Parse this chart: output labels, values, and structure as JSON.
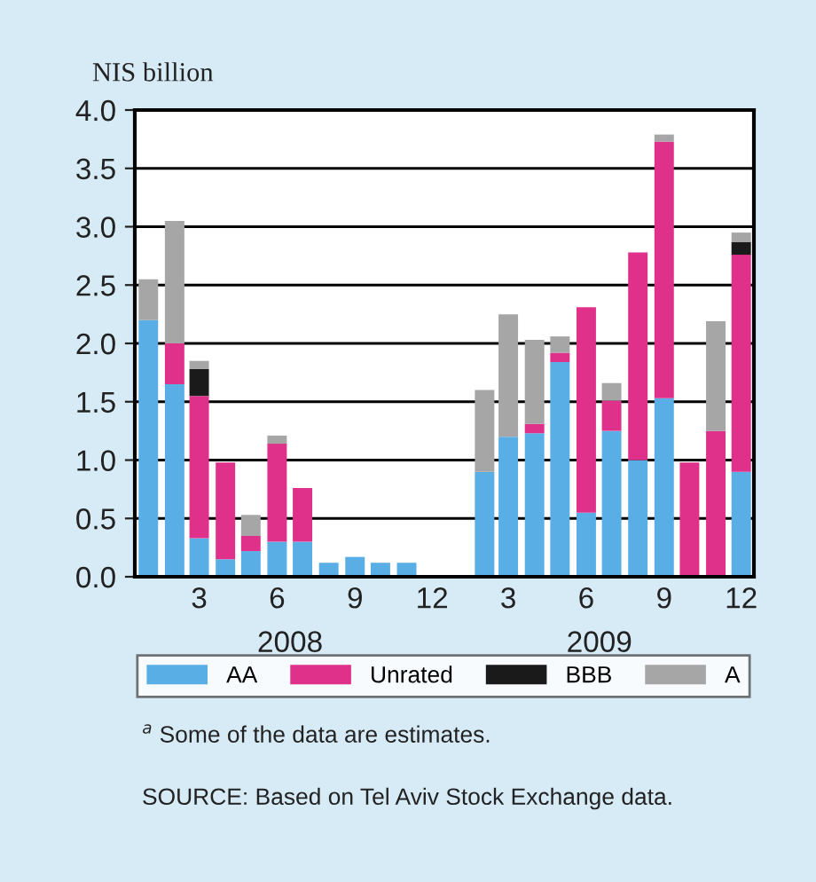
{
  "chart_data": {
    "type": "bar",
    "stacked": true,
    "ylabel": "NIS billion",
    "x": [
      "2008-01",
      "2008-02",
      "2008-03",
      "2008-04",
      "2008-05",
      "2008-06",
      "2008-07",
      "2008-08",
      "2008-09",
      "2008-10",
      "2008-11",
      "2008-12",
      "2009-01",
      "2009-02",
      "2009-03",
      "2009-04",
      "2009-05",
      "2009-06",
      "2009-07",
      "2009-08",
      "2009-09",
      "2009-10",
      "2009-11",
      "2009-12"
    ],
    "series": [
      {
        "name": "AA",
        "color": "#5aaee6",
        "values": [
          2.2,
          1.65,
          0.33,
          0.15,
          0.22,
          0.3,
          0.3,
          0.12,
          0.17,
          0.12,
          0.12,
          0,
          0,
          0.9,
          1.2,
          1.23,
          1.84,
          0.55,
          1.25,
          1.0,
          1.53,
          0,
          0,
          0.9
        ]
      },
      {
        "name": "Unrated",
        "color": "#e0318a",
        "values": [
          0,
          0.35,
          1.22,
          0.83,
          0.13,
          0.84,
          0.46,
          0,
          0,
          0,
          0,
          0,
          0,
          0,
          0,
          0.08,
          0.08,
          1.76,
          0.26,
          1.78,
          2.2,
          0.98,
          1.25,
          1.86
        ]
      },
      {
        "name": "BBB",
        "color": "#1a1a1a",
        "values": [
          0,
          0,
          0.23,
          0,
          0,
          0,
          0,
          0,
          0,
          0,
          0,
          0,
          0,
          0,
          0,
          0,
          0,
          0,
          0,
          0,
          0,
          0,
          0,
          0.11
        ]
      },
      {
        "name": "A",
        "color": "#a6a6a6",
        "values": [
          0.35,
          1.05,
          0.07,
          0,
          0.18,
          0.07,
          0,
          0,
          0,
          0,
          0,
          0,
          0,
          0.7,
          1.05,
          0.72,
          0.14,
          0,
          0.15,
          0,
          0.06,
          0,
          0.94,
          0.08
        ]
      }
    ],
    "xlim": [
      "2007-12-16",
      "2009-12-16"
    ],
    "xticks": [
      {
        "value": "2008-03",
        "label": "3"
      },
      {
        "value": "2008-06",
        "label": "6"
      },
      {
        "value": "2008-09",
        "label": "9"
      },
      {
        "value": "2008-12",
        "label": "12"
      },
      {
        "value": "2009-03",
        "label": "3"
      },
      {
        "value": "2009-06",
        "label": "6"
      },
      {
        "value": "2009-09",
        "label": "9"
      },
      {
        "value": "2009-12",
        "label": "12"
      }
    ],
    "ylim": [
      0,
      4
    ],
    "yticks": [
      {
        "value": 0,
        "label": "0.0"
      },
      {
        "value": 0.5,
        "label": "0.5"
      },
      {
        "value": 1,
        "label": "1.0"
      },
      {
        "value": 1.5,
        "label": "1.5"
      },
      {
        "value": 2,
        "label": "2.0"
      },
      {
        "value": 2.5,
        "label": "2.5"
      },
      {
        "value": 3,
        "label": "3.0"
      },
      {
        "value": 3.5,
        "label": "3.5"
      },
      {
        "value": 4,
        "label": "4.0"
      }
    ],
    "grid": "y",
    "legend": "bottom",
    "annotations": [
      "2008",
      "2009",
      "$^{a}$ Some of the data are estimates.",
      "SOURCE: Based on Tel Aviv Stock Exchange data."
    ]
  }
}
